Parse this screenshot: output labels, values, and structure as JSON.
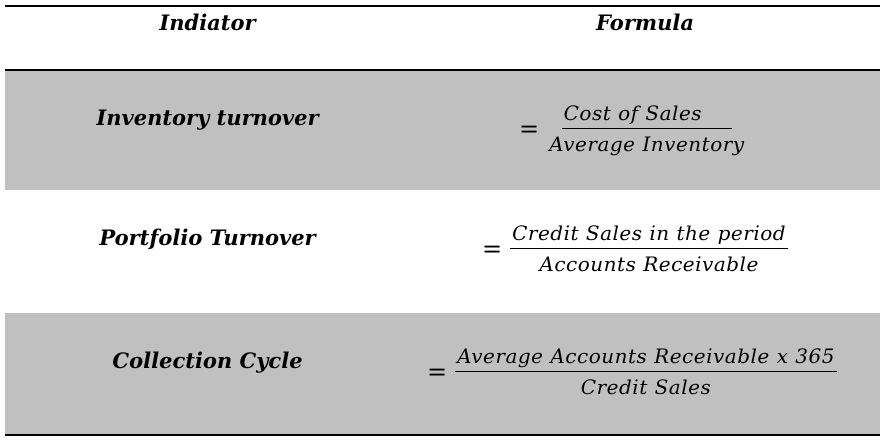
{
  "header": {
    "indicator": "Indiator",
    "formula": "Formula"
  },
  "rows": [
    {
      "indicator": "Inventory turnover",
      "equals": "=",
      "numerator": "Cost of  Sales",
      "denominator": "Average Inventory"
    },
    {
      "indicator": "Portfolio Turnover",
      "equals": "=",
      "numerator": "Credit Sales in the period",
      "denominator": "Accounts Receivable"
    },
    {
      "indicator": "Collection Cycle",
      "equals": "=",
      "numerator": "Average Accounts Receivable x 365",
      "denominator": "Credit Sales"
    }
  ],
  "colors": {
    "shaded_row": "#c0c0c0",
    "rule": "#000000"
  }
}
